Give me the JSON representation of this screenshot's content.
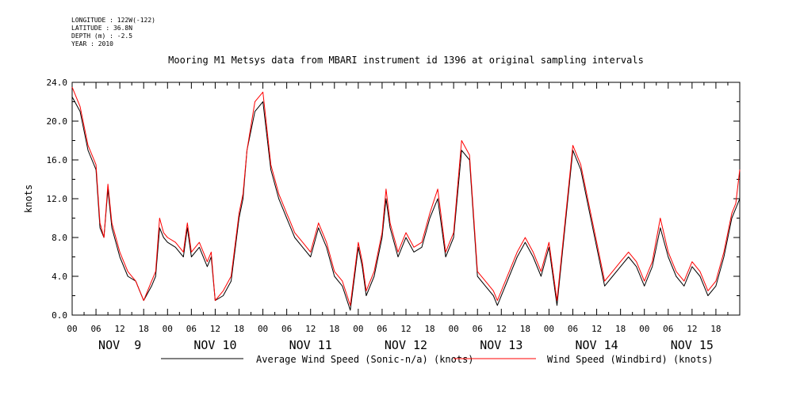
{
  "metadata": {
    "longitude": "LONGITUDE : 122W(-122)",
    "latitude": "LATITUDE : 36.8N",
    "depth": "DEPTH (m) : -2.5",
    "year": "YEAR : 2010"
  },
  "chart_data": {
    "type": "line",
    "title": "Mooring M1 Metsys data from MBARI instrument id 1396 at original sampling intervals",
    "ylabel": "knots",
    "xlabel": "",
    "ylim": [
      0,
      24
    ],
    "yticks": [
      "0.0",
      "4.0",
      "8.0",
      "12.0",
      "16.0",
      "20.0",
      "24.0"
    ],
    "xlim_hours": [
      0,
      168
    ],
    "hour_ticks": [
      "00",
      "06",
      "12",
      "18",
      "00",
      "06",
      "12",
      "18",
      "00",
      "06",
      "12",
      "18",
      "00",
      "06",
      "12",
      "18",
      "00",
      "06",
      "12",
      "18",
      "00",
      "06",
      "12",
      "18",
      "00",
      "06",
      "12",
      "18"
    ],
    "day_labels": [
      "NOV  9",
      "NOV 10",
      "NOV 11",
      "NOV 12",
      "NOV 13",
      "NOV 14",
      "NOV 15"
    ],
    "grid": false,
    "legend_position": "bottom",
    "colors": {
      "series1": "#000000",
      "series2": "#ff0000"
    },
    "series": [
      {
        "name": "Average Wind Speed (Sonic-n/a) (knots)",
        "color": "#000000",
        "x_hours": [
          0,
          2,
          4,
          6,
          7,
          8,
          9,
          10,
          12,
          14,
          16,
          17,
          18,
          20,
          21,
          22,
          23,
          24,
          26,
          28,
          29,
          30,
          32,
          34,
          35,
          36,
          38,
          40,
          42,
          43,
          44,
          46,
          48,
          50,
          52,
          54,
          55,
          56,
          58,
          60,
          62,
          64,
          66,
          68,
          70,
          72,
          73,
          74,
          76,
          78,
          79,
          80,
          82,
          83,
          84,
          86,
          88,
          90,
          92,
          94,
          96,
          98,
          100,
          102,
          104,
          106,
          107,
          108,
          110,
          112,
          114,
          116,
          118,
          120,
          122,
          124,
          126,
          128,
          130,
          132,
          134,
          136,
          138,
          140,
          142,
          144,
          146,
          148,
          150,
          152,
          154,
          156,
          158,
          160,
          162,
          164,
          166,
          167,
          168
        ],
        "values": [
          22.5,
          21,
          17,
          15,
          9,
          8,
          13,
          9,
          6,
          4,
          3.5,
          2.5,
          1.5,
          3,
          4,
          9,
          8,
          7.5,
          7,
          6,
          9,
          6,
          7,
          5,
          6,
          1.5,
          2,
          3.5,
          10,
          12,
          17,
          21,
          22,
          15,
          12,
          10,
          9,
          8,
          7,
          6,
          9,
          7,
          4,
          3,
          0.5,
          7,
          5,
          2,
          4,
          8,
          12,
          9,
          6,
          7,
          8,
          6.5,
          7,
          10,
          12,
          6,
          8,
          17,
          16,
          4,
          3,
          2,
          1,
          2,
          4,
          6,
          7.5,
          6,
          4,
          7,
          1,
          9,
          17,
          15,
          11,
          7,
          3,
          4,
          5,
          6,
          5,
          3,
          5,
          9,
          6,
          4,
          3,
          5,
          4,
          2,
          3,
          6,
          10,
          11,
          12
        ]
      },
      {
        "name": "Wind Speed (Windbird) (knots)",
        "color": "#ff0000",
        "x_hours": [
          0,
          2,
          4,
          6,
          7,
          8,
          9,
          10,
          12,
          14,
          16,
          17,
          18,
          20,
          21,
          22,
          23,
          24,
          26,
          28,
          29,
          30,
          32,
          34,
          35,
          36,
          38,
          40,
          42,
          43,
          44,
          46,
          48,
          50,
          52,
          54,
          55,
          56,
          58,
          60,
          62,
          64,
          66,
          68,
          70,
          72,
          73,
          74,
          76,
          78,
          79,
          80,
          82,
          83,
          84,
          86,
          88,
          90,
          92,
          94,
          96,
          98,
          100,
          102,
          104,
          106,
          107,
          108,
          110,
          112,
          114,
          116,
          118,
          120,
          122,
          124,
          126,
          128,
          130,
          132,
          134,
          136,
          138,
          140,
          142,
          144,
          146,
          148,
          150,
          152,
          154,
          156,
          158,
          160,
          162,
          164,
          166,
          167,
          168
        ],
        "values": [
          23.5,
          21.5,
          17.5,
          15.5,
          9.5,
          8,
          13.5,
          9.5,
          6.5,
          4.5,
          3.5,
          2.5,
          1.5,
          3.5,
          4.5,
          10,
          8.5,
          8,
          7.5,
          6.5,
          9.5,
          6.5,
          7.5,
          5.5,
          6.5,
          1.5,
          2.5,
          4,
          10.5,
          12.5,
          17,
          22,
          23,
          15.5,
          12.5,
          10.5,
          9.5,
          8.5,
          7.5,
          6.5,
          9.5,
          7.5,
          4.5,
          3.5,
          1,
          7.5,
          5.5,
          2.5,
          4.5,
          8.5,
          13,
          9.5,
          6.5,
          7.5,
          8.5,
          7,
          7.5,
          10.5,
          13,
          6.5,
          8.5,
          18,
          16.5,
          4.5,
          3.5,
          2.5,
          1.5,
          2.5,
          4.5,
          6.5,
          8,
          6.5,
          4.5,
          7.5,
          1.5,
          9.5,
          17.5,
          15.5,
          11.5,
          7.5,
          3.5,
          4.5,
          5.5,
          6.5,
          5.5,
          3.5,
          5.5,
          10,
          6.5,
          4.5,
          3.5,
          5.5,
          4.5,
          2.5,
          3.5,
          6.5,
          10.5,
          11.5,
          15
        ]
      }
    ]
  }
}
